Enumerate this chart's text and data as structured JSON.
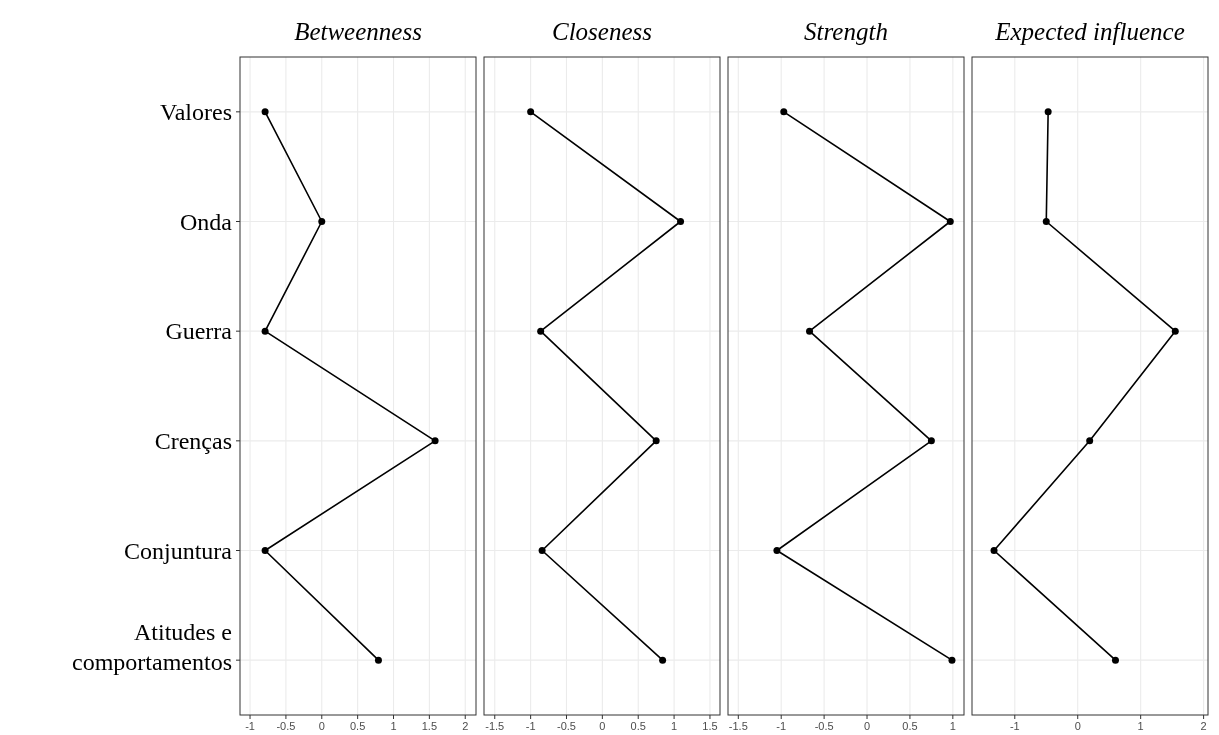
{
  "chart_data": [
    {
      "type": "line",
      "orientation": "horizontal",
      "title": "Betweenness",
      "categories": [
        "Valores",
        "Onda",
        "Guerra",
        "Crenças",
        "Conjuntura",
        "Atitudes e\ncomportamentos"
      ],
      "values": [
        -0.79,
        0,
        -0.79,
        1.58,
        -0.79,
        0.79
      ],
      "color": "#000000",
      "xlim": [
        -1.14,
        2.15
      ],
      "xticks": [
        -1,
        -0.5,
        0,
        0.5,
        1,
        1.5,
        2
      ],
      "grid": true,
      "marker": "circle"
    },
    {
      "type": "line",
      "orientation": "horizontal",
      "title": "Closeness",
      "values": [
        -1.0,
        1.09,
        -0.86,
        0.75,
        -0.84,
        0.84
      ],
      "color": "#000000",
      "xlim": [
        -1.65,
        1.64
      ],
      "xticks": [
        -1.5,
        -1,
        -0.5,
        0,
        0.5,
        1,
        1.5
      ],
      "grid": true,
      "marker": "circle",
      "tick_labels": "x"
    },
    {
      "type": "line",
      "orientation": "horizontal",
      "title": "Strength",
      "values": [
        -0.97,
        0.97,
        -0.67,
        0.75,
        -1.05,
        0.99
      ],
      "color": "#000000",
      "xlim": [
        -1.62,
        1.13
      ],
      "xticks": [
        -1.5,
        -1,
        -0.5,
        0,
        0.5,
        1
      ],
      "grid": true,
      "marker": "circle",
      "tick_labels": "x"
    },
    {
      "type": "line",
      "orientation": "horizontal",
      "title": "Expected influence",
      "values": [
        -0.47,
        -0.5,
        1.55,
        0.19,
        -1.33,
        0.6
      ],
      "color": "#000000",
      "xlim": [
        -1.68,
        2.07
      ],
      "xticks": [
        -1,
        0,
        1,
        2
      ],
      "grid": true,
      "marker": "circle",
      "tick_labels": "x"
    }
  ]
}
